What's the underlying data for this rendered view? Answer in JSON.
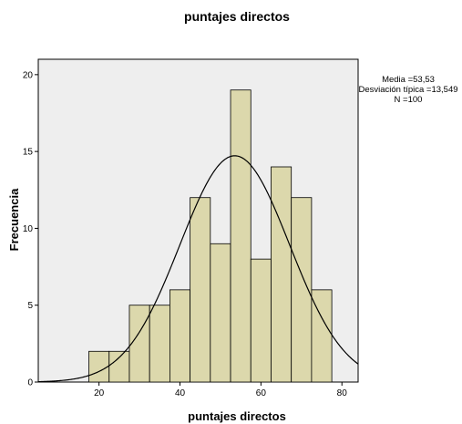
{
  "chart_data": {
    "type": "bar",
    "subtype": "histogram",
    "title": "puntajes directos",
    "xlabel": "puntajes directos",
    "ylabel": "Frecuencia",
    "xlim": [
      5,
      84
    ],
    "ylim": [
      0,
      21
    ],
    "x_ticks": [
      20,
      40,
      60,
      80
    ],
    "y_ticks": [
      0,
      5,
      10,
      15,
      20
    ],
    "bin_width": 5,
    "bins": [
      {
        "start": 17.5,
        "count": 2
      },
      {
        "start": 22.5,
        "count": 2
      },
      {
        "start": 27.5,
        "count": 5
      },
      {
        "start": 32.5,
        "count": 5
      },
      {
        "start": 37.5,
        "count": 6
      },
      {
        "start": 42.5,
        "count": 12
      },
      {
        "start": 47.5,
        "count": 9
      },
      {
        "start": 52.5,
        "count": 19
      },
      {
        "start": 57.5,
        "count": 8
      },
      {
        "start": 62.5,
        "count": 14
      },
      {
        "start": 67.5,
        "count": 12
      },
      {
        "start": 72.5,
        "count": 6
      }
    ],
    "normal_curve": {
      "mean": 53.53,
      "sd": 13.549,
      "n": 100
    },
    "stats": {
      "mean_text": "Media =53,53",
      "sd_text": "Desviación típica =13,549",
      "n_text": "N =100"
    },
    "grid": false,
    "colors": {
      "bar_fill": "#dcd8ac",
      "bar_stroke": "#000000",
      "plot_background": "#eeeeee",
      "curve": "#000000"
    }
  }
}
